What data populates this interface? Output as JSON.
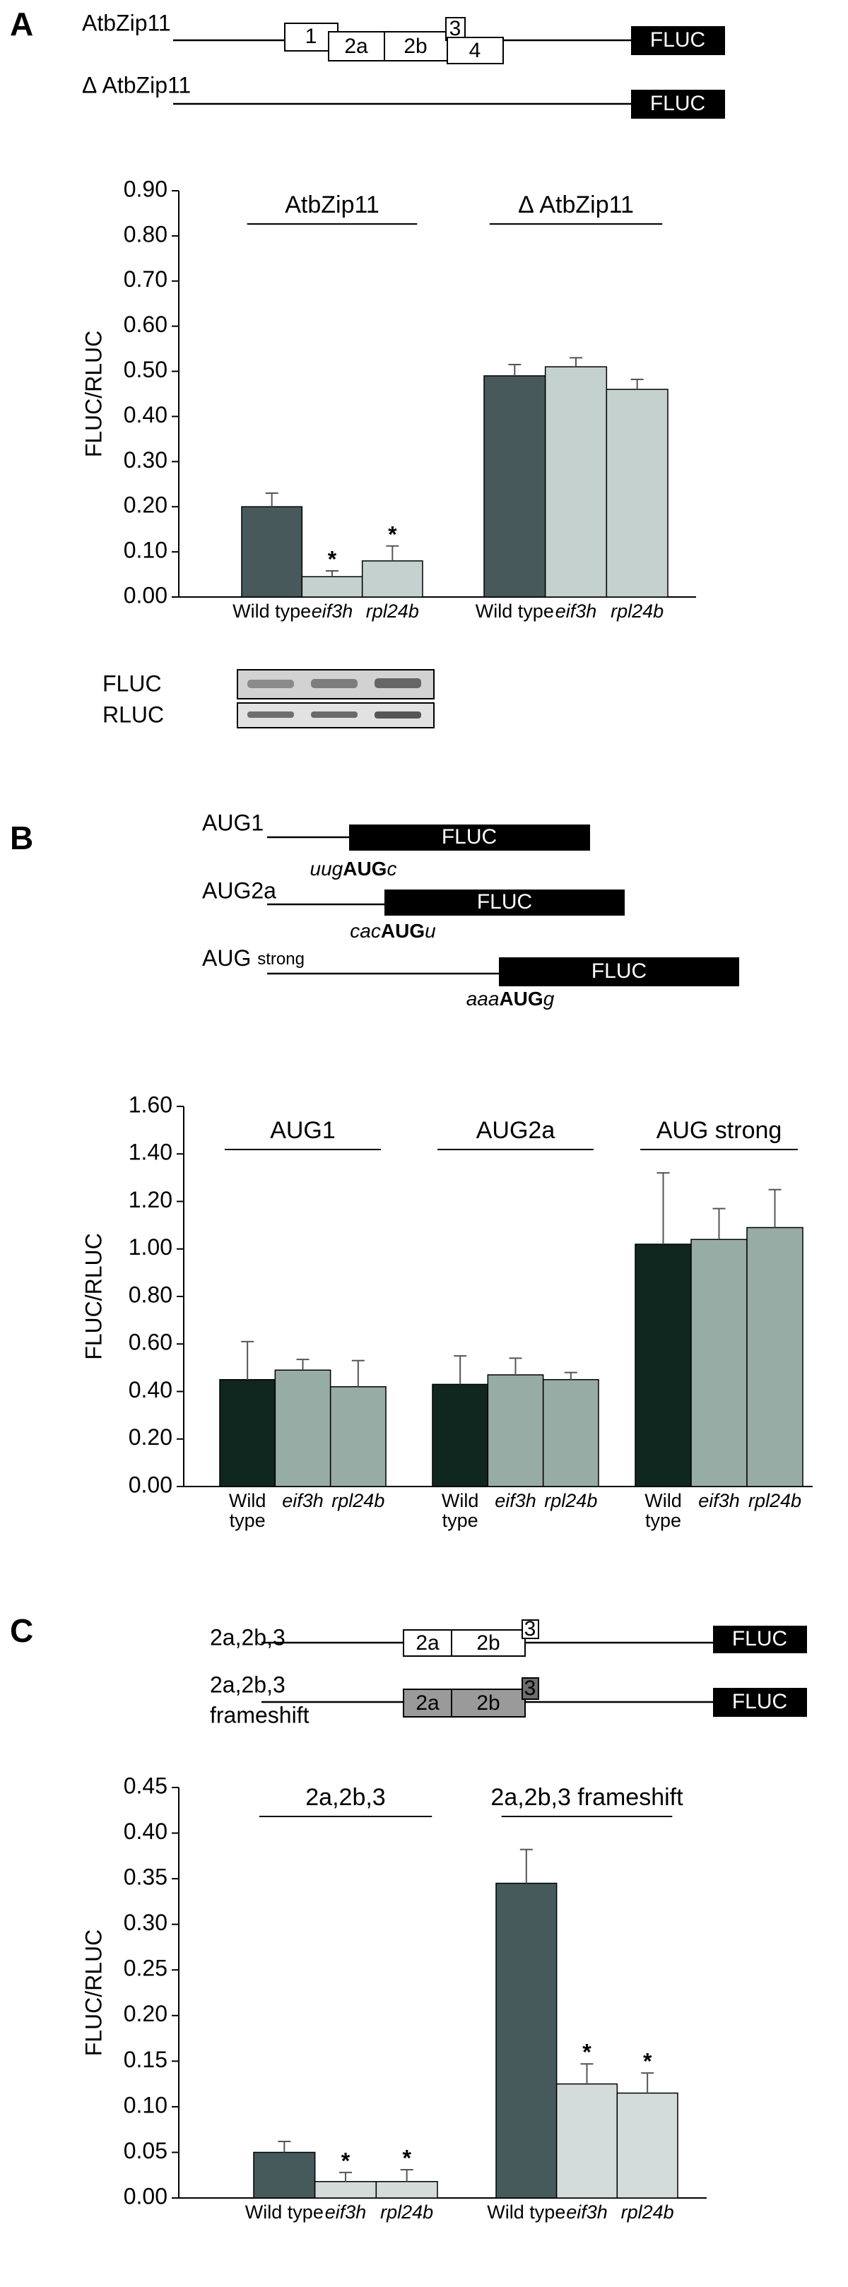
{
  "panel_labels": [
    "A",
    "B",
    "C"
  ],
  "diagram_a": {
    "constructs": [
      {
        "name": "AtbZip11",
        "exons": [
          "1",
          "2a",
          "2b",
          "3",
          "4"
        ],
        "reporter": "FLUC"
      },
      {
        "name": "Δ AtbZip11",
        "reporter": "FLUC"
      }
    ]
  },
  "blot": {
    "rows": [
      "FLUC",
      "RLUC"
    ]
  },
  "diagram_b": {
    "constructs": [
      {
        "name": [
          "AUG1"
        ],
        "context": [
          "uug",
          "AUG",
          "c"
        ],
        "reporter": "FLUC"
      },
      {
        "name": [
          "AUG2a"
        ],
        "context": [
          "cac",
          "AUG",
          "u"
        ],
        "reporter": "FLUC"
      },
      {
        "name": [
          "AUG",
          "strong"
        ],
        "context": [
          "aaa",
          "AUG",
          "g"
        ],
        "reporter": "FLUC"
      }
    ]
  },
  "diagram_c": {
    "constructs": [
      {
        "name": [
          "2a,2b,3"
        ],
        "exons": [
          "2a",
          "2b",
          "3"
        ],
        "reporter": "FLUC"
      },
      {
        "name": [
          "2a,2b,3",
          "frameshift"
        ],
        "exons": [
          "2a",
          "2b",
          "3"
        ],
        "reporter": "FLUC"
      }
    ]
  },
  "chart_data": [
    {
      "type": "bar",
      "y_label": "FLUC/RLUC",
      "categories": [
        "AtbZip11",
        "Δ AtbZip11"
      ],
      "series": [
        {
          "name": "Wild type",
          "color": "#48595b",
          "values": [
            0.2,
            0.49
          ],
          "errors": [
            0.03,
            0.025
          ],
          "annotations": [
            null,
            null
          ]
        },
        {
          "name": "eif3h",
          "color": "#c4d1ce",
          "values": [
            0.045,
            0.51
          ],
          "errors": [
            0.013,
            0.02
          ],
          "annotations": [
            "*",
            null
          ]
        },
        {
          "name": "rpl24b",
          "color": "#c4d1ce",
          "values": [
            0.08,
            0.46
          ],
          "errors": [
            0.033,
            0.022
          ],
          "annotations": [
            "*",
            null
          ]
        }
      ],
      "ylim": [
        0,
        0.9
      ],
      "yticks": [
        {
          "value": 0,
          "label": "0.00"
        },
        {
          "value": 0.1,
          "label": "0.10"
        },
        {
          "value": 0.2,
          "label": "0.20"
        },
        {
          "value": 0.3,
          "label": "0.30"
        },
        {
          "value": 0.4,
          "label": "0.40"
        },
        {
          "value": 0.5,
          "label": "0.50"
        },
        {
          "value": 0.6,
          "label": "0.60"
        },
        {
          "value": 0.7,
          "label": "0.70"
        },
        {
          "value": 0.8,
          "label": "0.80"
        },
        {
          "value": 0.9,
          "label": "0.90"
        }
      ]
    },
    {
      "type": "bar",
      "y_label": "FLUC/RLUC",
      "categories": [
        "AUG1",
        "AUG2a",
        "AUG strong"
      ],
      "series": [
        {
          "name": "Wild type",
          "color": "#10271f",
          "values": [
            0.45,
            0.43,
            1.02
          ],
          "errors": [
            0.16,
            0.12,
            0.3
          ],
          "annotations": [
            null,
            null,
            null
          ]
        },
        {
          "name": "eif3h",
          "color": "#97aca4",
          "values": [
            0.49,
            0.47,
            1.04
          ],
          "errors": [
            0.045,
            0.07,
            0.13
          ],
          "annotations": [
            null,
            null,
            null
          ]
        },
        {
          "name": "rpl24b",
          "color": "#97aca4",
          "values": [
            0.42,
            0.45,
            1.09
          ],
          "errors": [
            0.11,
            0.03,
            0.16
          ],
          "annotations": [
            null,
            null,
            null
          ]
        }
      ],
      "ylim": [
        0,
        1.6
      ],
      "yticks": [
        {
          "value": 0,
          "label": "0.00"
        },
        {
          "value": 0.2,
          "label": "0.20"
        },
        {
          "value": 0.4,
          "label": "0.40"
        },
        {
          "value": 0.6,
          "label": "0.60"
        },
        {
          "value": 0.8,
          "label": "0.80"
        },
        {
          "value": 1,
          "label": "1.00"
        },
        {
          "value": 1.2,
          "label": "1.20"
        },
        {
          "value": 1.4,
          "label": "1.40"
        },
        {
          "value": 1.6,
          "label": "1.60"
        }
      ]
    },
    {
      "type": "bar",
      "y_label": "FLUC/RLUC",
      "categories": [
        "2a,2b,3",
        "2a,2b,3 frameshift"
      ],
      "series": [
        {
          "name": "Wild type",
          "color": "#465a5c",
          "values": [
            0.05,
            0.345
          ],
          "errors": [
            0.012,
            0.037
          ],
          "annotations": [
            null,
            null
          ]
        },
        {
          "name": "eif3h",
          "color": "#d3dcda",
          "values": [
            0.018,
            0.125
          ],
          "errors": [
            0.01,
            0.022
          ],
          "annotations": [
            "*",
            "*"
          ]
        },
        {
          "name": "rpl24b",
          "color": "#d3dcda",
          "values": [
            0.018,
            0.115
          ],
          "errors": [
            0.013,
            0.022
          ],
          "annotations": [
            "*",
            "*"
          ]
        }
      ],
      "ylim": [
        0,
        0.45
      ],
      "yticks": [
        {
          "value": 0,
          "label": "0.00"
        },
        {
          "value": 0.05,
          "label": "0.05"
        },
        {
          "value": 0.1,
          "label": "0.10"
        },
        {
          "value": 0.15,
          "label": "0.15"
        },
        {
          "value": 0.2,
          "label": "0.20"
        },
        {
          "value": 0.25,
          "label": "0.25"
        },
        {
          "value": 0.3,
          "label": "0.30"
        },
        {
          "value": 0.35,
          "label": "0.35"
        },
        {
          "value": 0.4,
          "label": "0.40"
        },
        {
          "value": 0.45,
          "label": "0.45"
        }
      ]
    }
  ]
}
